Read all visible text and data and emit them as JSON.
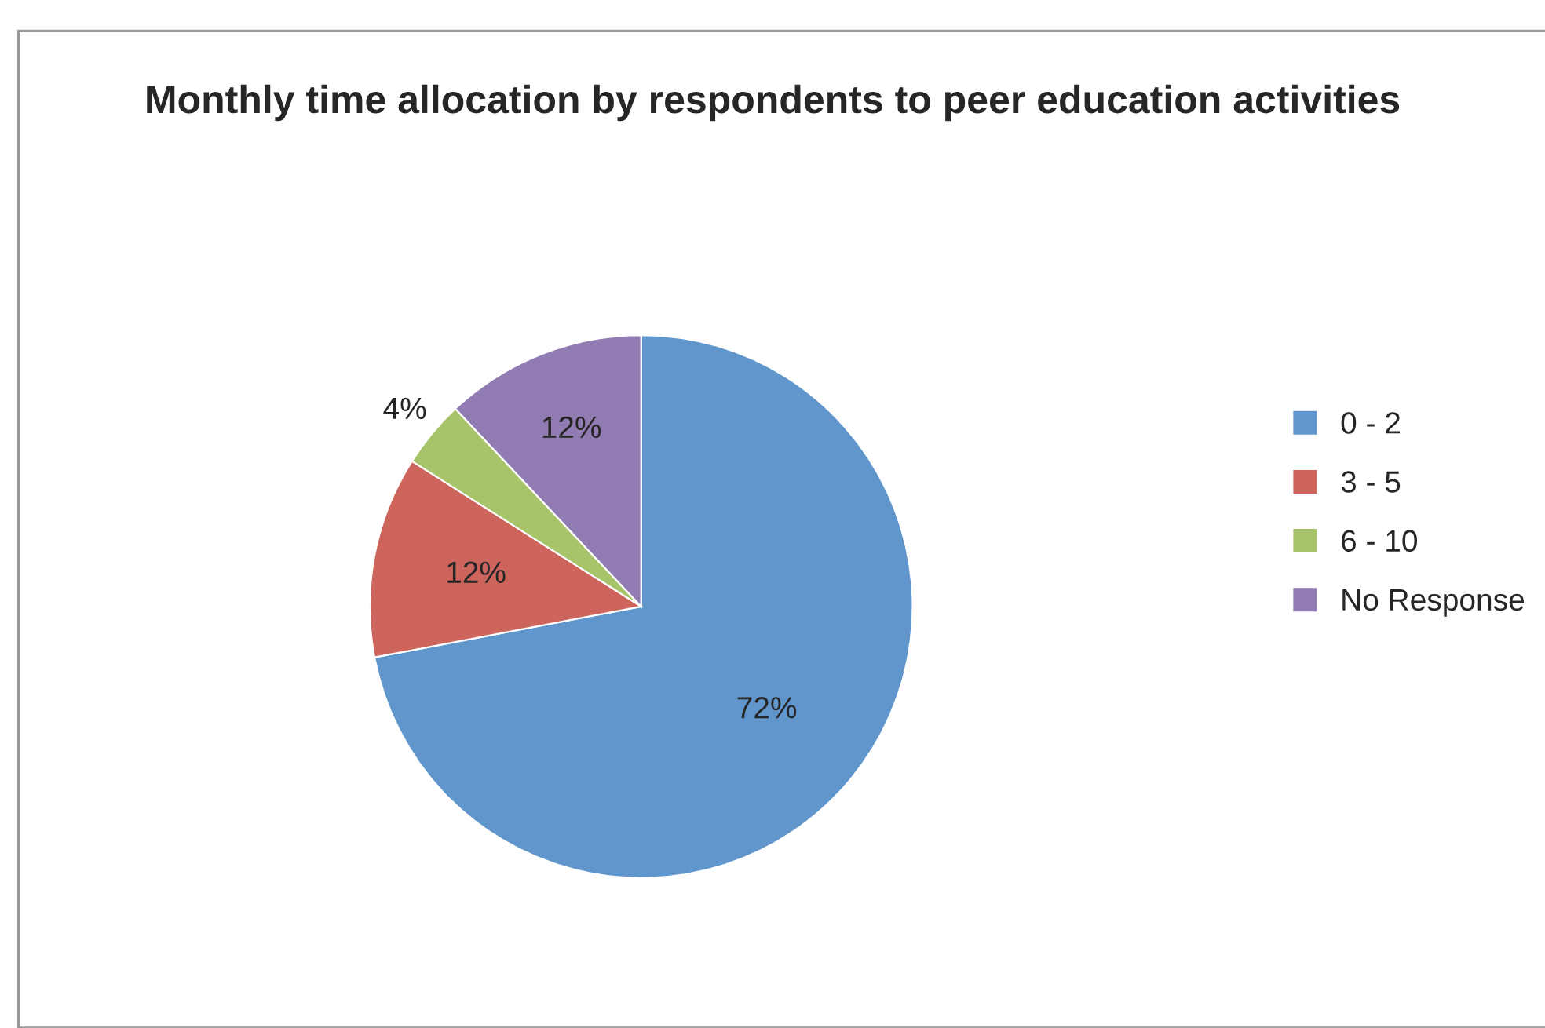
{
  "chart_data": {
    "type": "pie",
    "title": "Monthly time allocation by respondents to peer education activities",
    "categories": [
      "0 - 2",
      "3 - 5",
      "6 - 10",
      "No Response"
    ],
    "values": [
      72,
      12,
      4,
      12
    ],
    "colors": [
      "#6096cc",
      "#cd655c",
      "#a7c46a",
      "#917bb3"
    ],
    "value_labels": [
      "72%",
      "12%",
      "4%",
      "12%"
    ],
    "legend": "right"
  }
}
